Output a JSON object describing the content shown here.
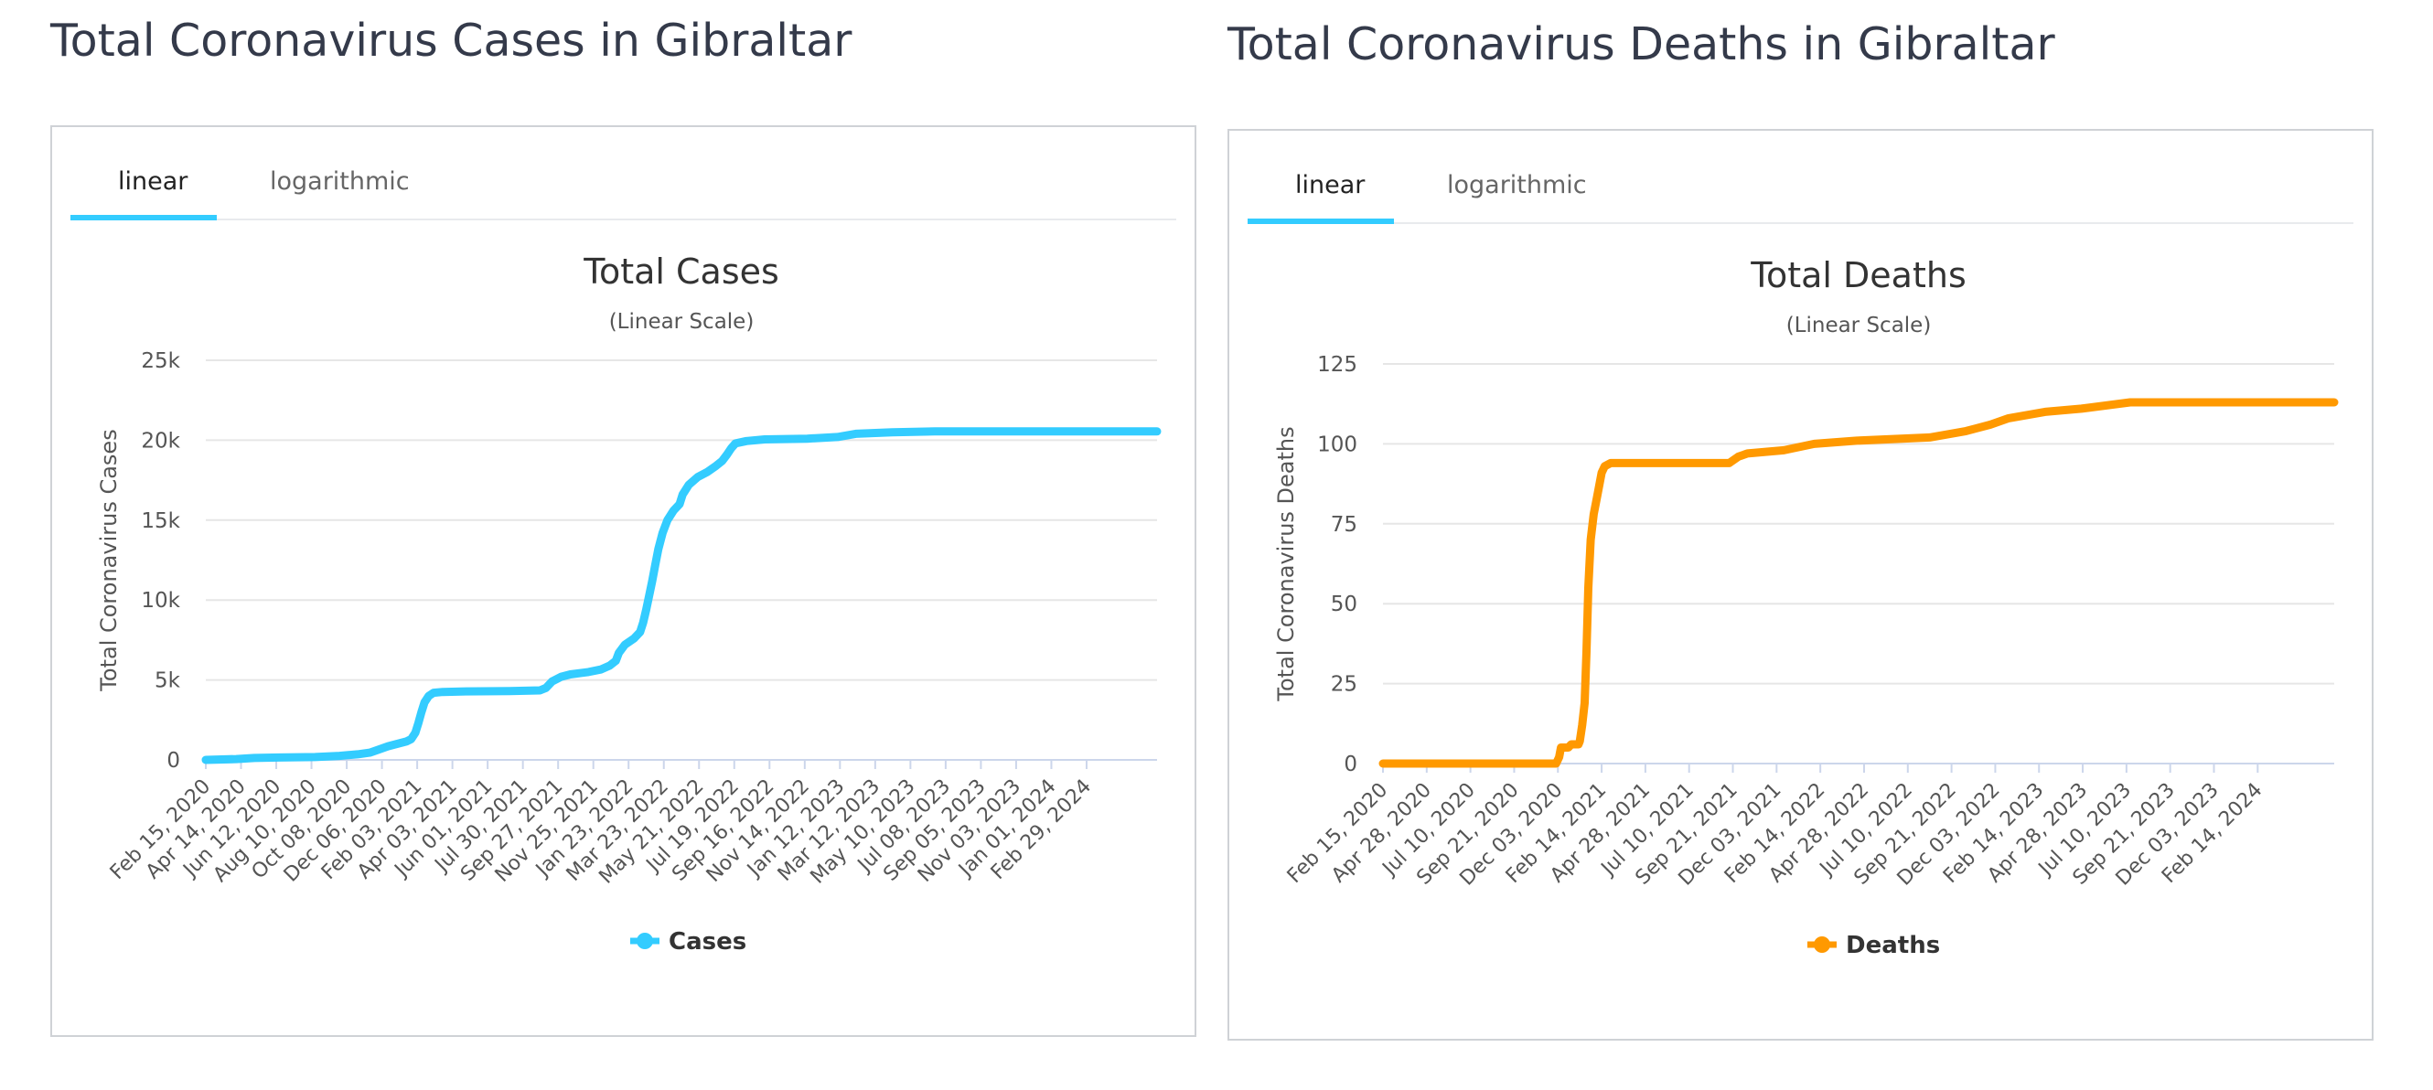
{
  "charts": [
    {
      "page_title": "Total Coronavirus Cases in Gibraltar",
      "tabs": [
        "linear",
        "logarithmic"
      ],
      "active_tab": "linear",
      "color": "#33ccff",
      "chart_data": {
        "type": "line",
        "title": "Total Cases",
        "subtitle": "(Linear Scale)",
        "ylabel": "Total Coronavirus Cases",
        "xlabel": "",
        "ylim": [
          0,
          25000
        ],
        "yticks": [
          0,
          5000,
          10000,
          15000,
          20000,
          25000
        ],
        "ytick_labels": [
          "0",
          "5k",
          "10k",
          "15k",
          "20k",
          "25k"
        ],
        "x_tick_labels": [
          "Feb 15, 2020",
          "Apr 14, 2020",
          "Jun 12, 2020",
          "Aug 10, 2020",
          "Oct 08, 2020",
          "Dec 06, 2020",
          "Feb 03, 2021",
          "Apr 03, 2021",
          "Jun 01, 2021",
          "Jul 30, 2021",
          "Sep 27, 2021",
          "Nov 25, 2021",
          "Jan 23, 2022",
          "Mar 23, 2022",
          "May 21, 2022",
          "Jul 19, 2022",
          "Sep 16, 2022",
          "Nov 14, 2022",
          "Jan 12, 2023",
          "Mar 12, 2023",
          "May 10, 2023",
          "Jul 08, 2023",
          "Sep 05, 2023",
          "Nov 03, 2023",
          "Jan 01, 2024",
          "Feb 29, 2024"
        ],
        "x_range_days": [
          0,
          1566
        ],
        "tick_step_days": 58,
        "legend": "Cases",
        "legend_position": "bottom-center",
        "series": [
          {
            "name": "Cases",
            "points": [
              [
                0,
                0
              ],
              [
                50,
                50
              ],
              [
                80,
                120
              ],
              [
                120,
                150
              ],
              [
                180,
                180
              ],
              [
                220,
                250
              ],
              [
                250,
                350
              ],
              [
                270,
                450
              ],
              [
                285,
                650
              ],
              [
                300,
                850
              ],
              [
                315,
                1000
              ],
              [
                330,
                1150
              ],
              [
                338,
                1300
              ],
              [
                345,
                1700
              ],
              [
                350,
                2300
              ],
              [
                355,
                3000
              ],
              [
                360,
                3600
              ],
              [
                367,
                4000
              ],
              [
                375,
                4200
              ],
              [
                390,
                4250
              ],
              [
                420,
                4280
              ],
              [
                500,
                4300
              ],
              [
                550,
                4350
              ],
              [
                560,
                4500
              ],
              [
                570,
                4900
              ],
              [
                585,
                5200
              ],
              [
                600,
                5350
              ],
              [
                630,
                5500
              ],
              [
                650,
                5650
              ],
              [
                665,
                5900
              ],
              [
                675,
                6200
              ],
              [
                680,
                6700
              ],
              [
                690,
                7200
              ],
              [
                705,
                7600
              ],
              [
                715,
                8000
              ],
              [
                720,
                8600
              ],
              [
                725,
                9400
              ],
              [
                730,
                10300
              ],
              [
                735,
                11200
              ],
              [
                740,
                12200
              ],
              [
                745,
                13200
              ],
              [
                752,
                14200
              ],
              [
                760,
                15000
              ],
              [
                770,
                15600
              ],
              [
                780,
                16000
              ],
              [
                785,
                16600
              ],
              [
                795,
                17200
              ],
              [
                810,
                17700
              ],
              [
                825,
                18000
              ],
              [
                840,
                18400
              ],
              [
                850,
                18700
              ],
              [
                858,
                19100
              ],
              [
                865,
                19500
              ],
              [
                872,
                19800
              ],
              [
                890,
                19950
              ],
              [
                920,
                20050
              ],
              [
                990,
                20100
              ],
              [
                1040,
                20200
              ],
              [
                1070,
                20400
              ],
              [
                1130,
                20500
              ],
              [
                1200,
                20550
              ],
              [
                1566,
                20550
              ]
            ]
          }
        ]
      }
    },
    {
      "page_title": "Total Coronavirus Deaths in Gibraltar",
      "tabs": [
        "linear",
        "logarithmic"
      ],
      "active_tab": "linear",
      "color": "#ff9900",
      "chart_data": {
        "type": "line",
        "title": "Total Deaths",
        "subtitle": "(Linear Scale)",
        "ylabel": "Total Coronavirus Deaths",
        "xlabel": "",
        "ylim": [
          0,
          125
        ],
        "yticks": [
          0,
          25,
          50,
          75,
          100,
          125
        ],
        "ytick_labels": [
          "0",
          "25",
          "50",
          "75",
          "100",
          "125"
        ],
        "x_tick_labels": [
          "Feb 15, 2020",
          "Apr 28, 2020",
          "Jul 10, 2020",
          "Sep 21, 2020",
          "Dec 03, 2020",
          "Feb 14, 2021",
          "Apr 28, 2021",
          "Jul 10, 2021",
          "Sep 21, 2021",
          "Dec 03, 2021",
          "Feb 14, 2022",
          "Apr 28, 2022",
          "Jul 10, 2022",
          "Sep 21, 2022",
          "Dec 03, 2022",
          "Feb 14, 2023",
          "Apr 28, 2023",
          "Jul 10, 2023",
          "Sep 21, 2023",
          "Dec 03, 2023",
          "Feb 14, 2024"
        ],
        "x_range_days": [
          0,
          1566
        ],
        "tick_step_days": 72,
        "legend": "Deaths",
        "legend_position": "bottom-center",
        "series": [
          {
            "name": "Deaths",
            "points": [
              [
                0,
                0
              ],
              [
                285,
                0
              ],
              [
                290,
                2
              ],
              [
                293,
                5
              ],
              [
                305,
                5
              ],
              [
                310,
                6
              ],
              [
                322,
                6
              ],
              [
                324,
                7
              ],
              [
                328,
                12
              ],
              [
                332,
                19
              ],
              [
                335,
                35
              ],
              [
                338,
                55
              ],
              [
                342,
                70
              ],
              [
                347,
                78
              ],
              [
                352,
                83
              ],
              [
                355,
                86
              ],
              [
                360,
                91
              ],
              [
                365,
                93
              ],
              [
                375,
                94
              ],
              [
                450,
                94
              ],
              [
                570,
                94
              ],
              [
                585,
                96
              ],
              [
                600,
                97
              ],
              [
                660,
                98
              ],
              [
                710,
                100
              ],
              [
                780,
                101
              ],
              [
                900,
                102
              ],
              [
                960,
                104
              ],
              [
                1000,
                106
              ],
              [
                1030,
                108
              ],
              [
                1090,
                110
              ],
              [
                1150,
                111
              ],
              [
                1230,
                113
              ],
              [
                1566,
                113
              ]
            ]
          }
        ]
      }
    }
  ]
}
